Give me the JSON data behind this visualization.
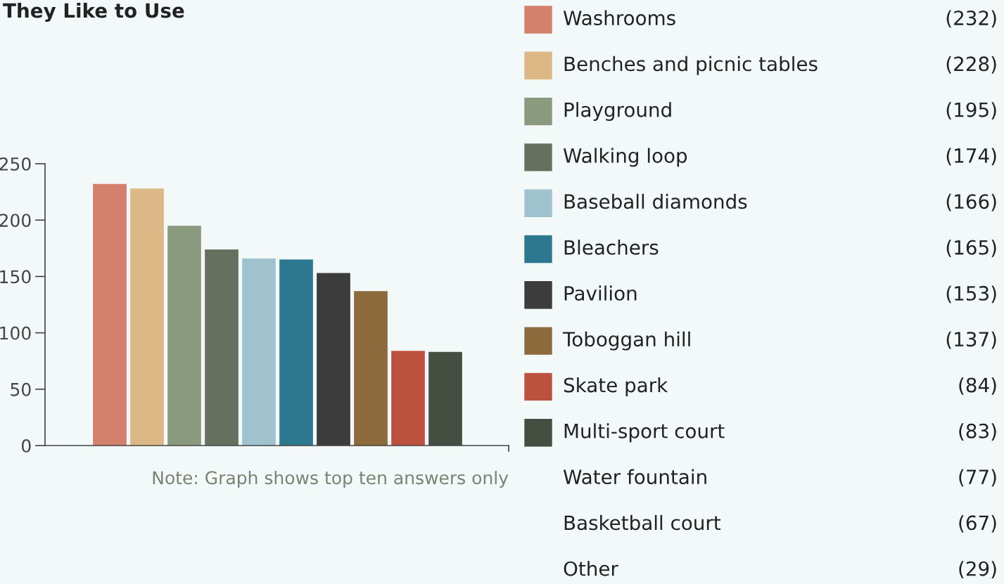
{
  "chart_data": {
    "type": "bar",
    "title": "They Like to Use",
    "stacked": true,
    "categories": [
      null,
      null,
      null,
      null,
      null,
      null,
      null,
      null,
      null,
      null
    ],
    "series": [
      {
        "name": "Washrooms",
        "color": "#d4806c",
        "values": [
          232,
          null,
          null,
          null,
          null,
          null,
          null,
          null,
          null,
          null
        ]
      },
      {
        "name": "Benches and picnic tables",
        "color": "#dbb886",
        "values": [
          null,
          228,
          null,
          null,
          null,
          null,
          null,
          null,
          null,
          null
        ]
      },
      {
        "name": "Playground",
        "color": "#8a9a7e",
        "values": [
          null,
          null,
          195,
          null,
          null,
          null,
          null,
          null,
          null,
          null
        ]
      },
      {
        "name": "Walking loop",
        "color": "#65705f",
        "values": [
          null,
          null,
          null,
          174,
          null,
          null,
          null,
          null,
          null,
          null
        ]
      },
      {
        "name": "Baseball diamonds",
        "color": "#a0c2ce",
        "values": [
          null,
          null,
          null,
          null,
          166,
          null,
          null,
          null,
          null,
          null
        ]
      },
      {
        "name": "Bleachers",
        "color": "#2d7891",
        "values": [
          null,
          null,
          null,
          null,
          null,
          165,
          null,
          null,
          null,
          null
        ]
      },
      {
        "name": "Pavilion",
        "color": "#3c3c3c",
        "values": [
          null,
          null,
          null,
          null,
          null,
          null,
          153,
          null,
          null,
          null
        ]
      },
      {
        "name": "Toboggan hill",
        "color": "#8c6a3c",
        "values": [
          null,
          null,
          null,
          null,
          null,
          null,
          null,
          137,
          null,
          null
        ]
      },
      {
        "name": "Skate park",
        "color": "#bc523e",
        "values": [
          null,
          null,
          null,
          null,
          null,
          null,
          null,
          null,
          84,
          null
        ]
      },
      {
        "name": "Multi-sport court",
        "color": "#464e41",
        "values": [
          null,
          null,
          null,
          null,
          null,
          null,
          null,
          null,
          null,
          83
        ]
      }
    ],
    "annotations": [
      "(232)",
      "(228)",
      "(195)",
      "(174)",
      "(166)",
      "(165)",
      "(153)",
      "(137)",
      "(84)",
      "(83)",
      "Water fountain",
      "(77)",
      "Basketball court",
      "(67)",
      "Other",
      "(29)",
      "Note: Graph shows top ten answers only"
    ],
    "ylim": [
      0,
      250
    ],
    "yticks": [
      0,
      50,
      100,
      150,
      200,
      250
    ],
    "grid": false,
    "legend": "right"
  }
}
